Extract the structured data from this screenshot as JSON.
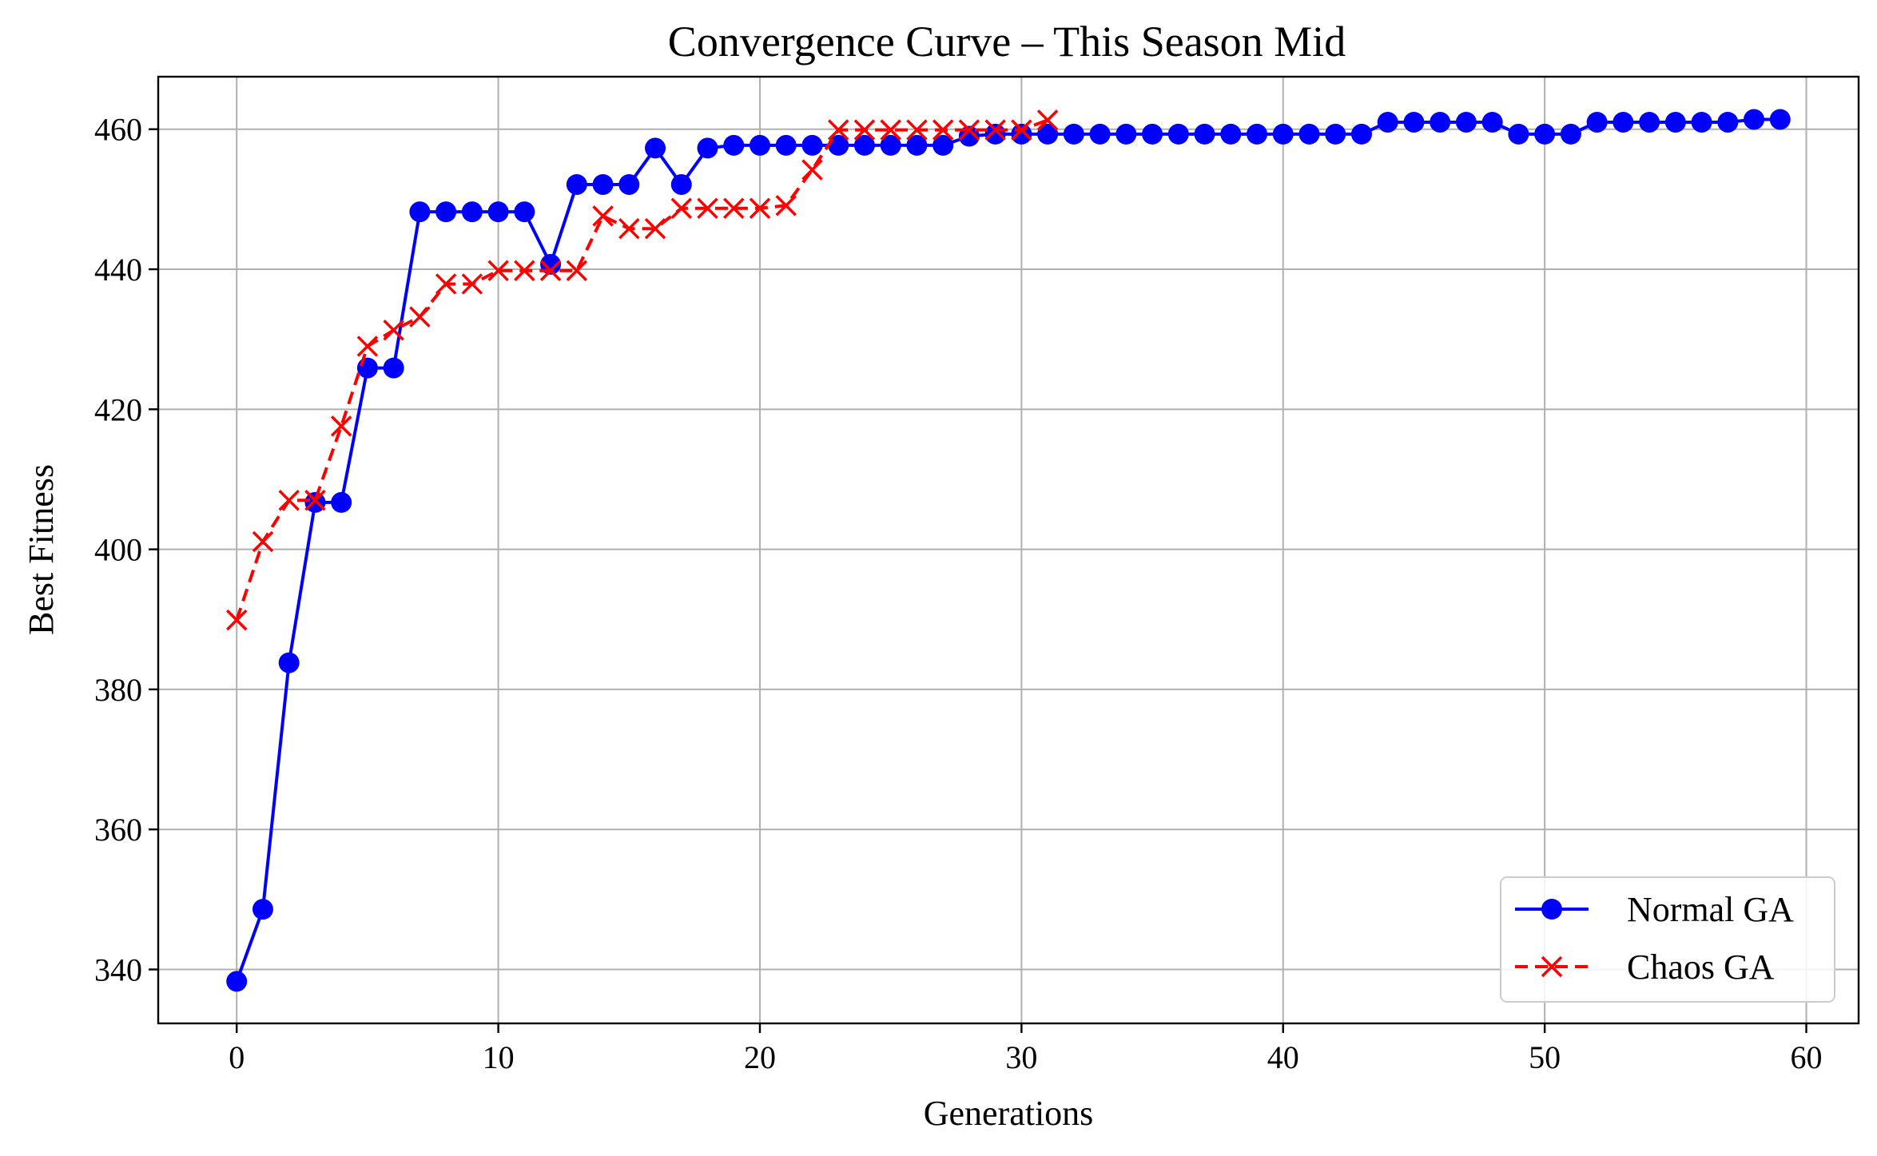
{
  "chart_data": {
    "type": "line",
    "title": "Convergence Curve – This Season Mid",
    "xlabel": "Generations",
    "ylabel": "Best Fitness",
    "xlim": [
      -3,
      62
    ],
    "ylim": [
      332.3,
      467.5
    ],
    "xticks": [
      0,
      10,
      20,
      30,
      40,
      50,
      60
    ],
    "yticks": [
      340,
      360,
      380,
      400,
      420,
      440,
      460
    ],
    "grid": true,
    "legend_position": "lower-right",
    "series": [
      {
        "name": "Normal GA",
        "color": "#0000ff",
        "line_style": "solid",
        "marker": "circle",
        "x": [
          0,
          1,
          2,
          3,
          4,
          5,
          6,
          7,
          8,
          9,
          10,
          11,
          12,
          13,
          14,
          15,
          16,
          17,
          18,
          19,
          20,
          21,
          22,
          23,
          24,
          25,
          26,
          27,
          28,
          29,
          30,
          31,
          32,
          33,
          34,
          35,
          36,
          37,
          38,
          39,
          40,
          41,
          42,
          43,
          44,
          45,
          46,
          47,
          48,
          49,
          50,
          51,
          52,
          53,
          54,
          55,
          56,
          57,
          58,
          59
        ],
        "values": [
          338.3,
          348.6,
          383.8,
          406.7,
          406.7,
          425.9,
          425.9,
          448.2,
          448.2,
          448.2,
          448.2,
          448.2,
          440.7,
          452.1,
          452.1,
          452.1,
          457.3,
          452.1,
          457.3,
          457.7,
          457.7,
          457.7,
          457.7,
          457.7,
          457.7,
          457.7,
          457.7,
          457.7,
          459.0,
          459.3,
          459.3,
          459.3,
          459.3,
          459.3,
          459.3,
          459.3,
          459.3,
          459.3,
          459.3,
          459.3,
          459.3,
          459.3,
          459.3,
          459.3,
          461.0,
          461.0,
          461.0,
          461.0,
          461.0,
          459.3,
          459.3,
          459.3,
          461.0,
          461.0,
          461.0,
          461.0,
          461.0,
          461.0,
          461.4,
          461.4
        ]
      },
      {
        "name": "Chaos GA",
        "color": "#ff0000",
        "line_style": "dashed",
        "marker": "x",
        "x": [
          0,
          1,
          2,
          3,
          4,
          5,
          6,
          7,
          8,
          9,
          10,
          11,
          12,
          13,
          14,
          15,
          16,
          17,
          18,
          19,
          20,
          21,
          22,
          23,
          24,
          25,
          26,
          27,
          28,
          29,
          30,
          31
        ],
        "values": [
          389.9,
          401.1,
          407.0,
          407.0,
          417.6,
          429.0,
          431.3,
          433.2,
          437.9,
          437.9,
          439.8,
          439.8,
          439.8,
          439.8,
          447.6,
          445.8,
          445.8,
          448.7,
          448.7,
          448.7,
          448.7,
          449.1,
          454.2,
          459.9,
          459.9,
          459.9,
          459.9,
          459.9,
          459.9,
          459.9,
          459.9,
          461.3
        ]
      }
    ]
  }
}
